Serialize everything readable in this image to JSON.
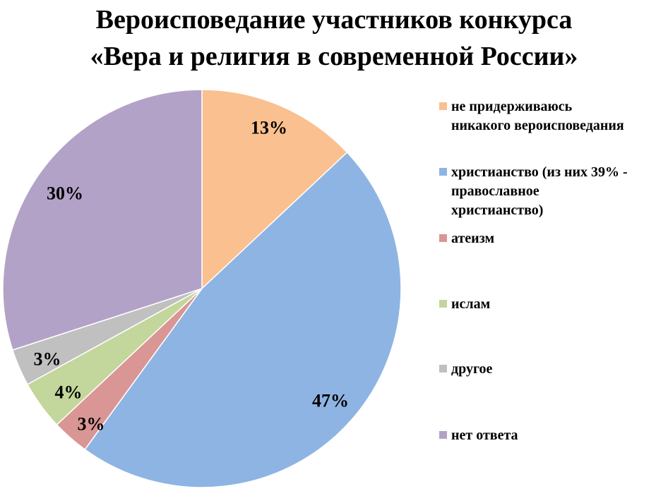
{
  "chart_data": {
    "type": "pie",
    "title_lines": [
      "Вероисповедание участников конкурса",
      "«Вера и религия в современной России»"
    ],
    "slices": [
      {
        "label": "не придерживаюсь\nникакого вероисповедания",
        "value": 13,
        "value_label": "13%",
        "color": "#FAC090"
      },
      {
        "label": "христианство (из них 39% -\nправославное\nхристианство)",
        "value": 47,
        "value_label": "47%",
        "color": "#8EB4E3"
      },
      {
        "label": "атеизм",
        "value": 3,
        "value_label": "3%",
        "color": "#D99694"
      },
      {
        "label": "ислам",
        "value": 4,
        "value_label": "4%",
        "color": "#C3D69B"
      },
      {
        "label": "другое",
        "value": 3,
        "value_label": "3%",
        "color": "#C0C0C0"
      },
      {
        "label": "нет ответа",
        "value": 30,
        "value_label": "30%",
        "color": "#B3A2C7"
      }
    ],
    "legend_position": "right"
  }
}
